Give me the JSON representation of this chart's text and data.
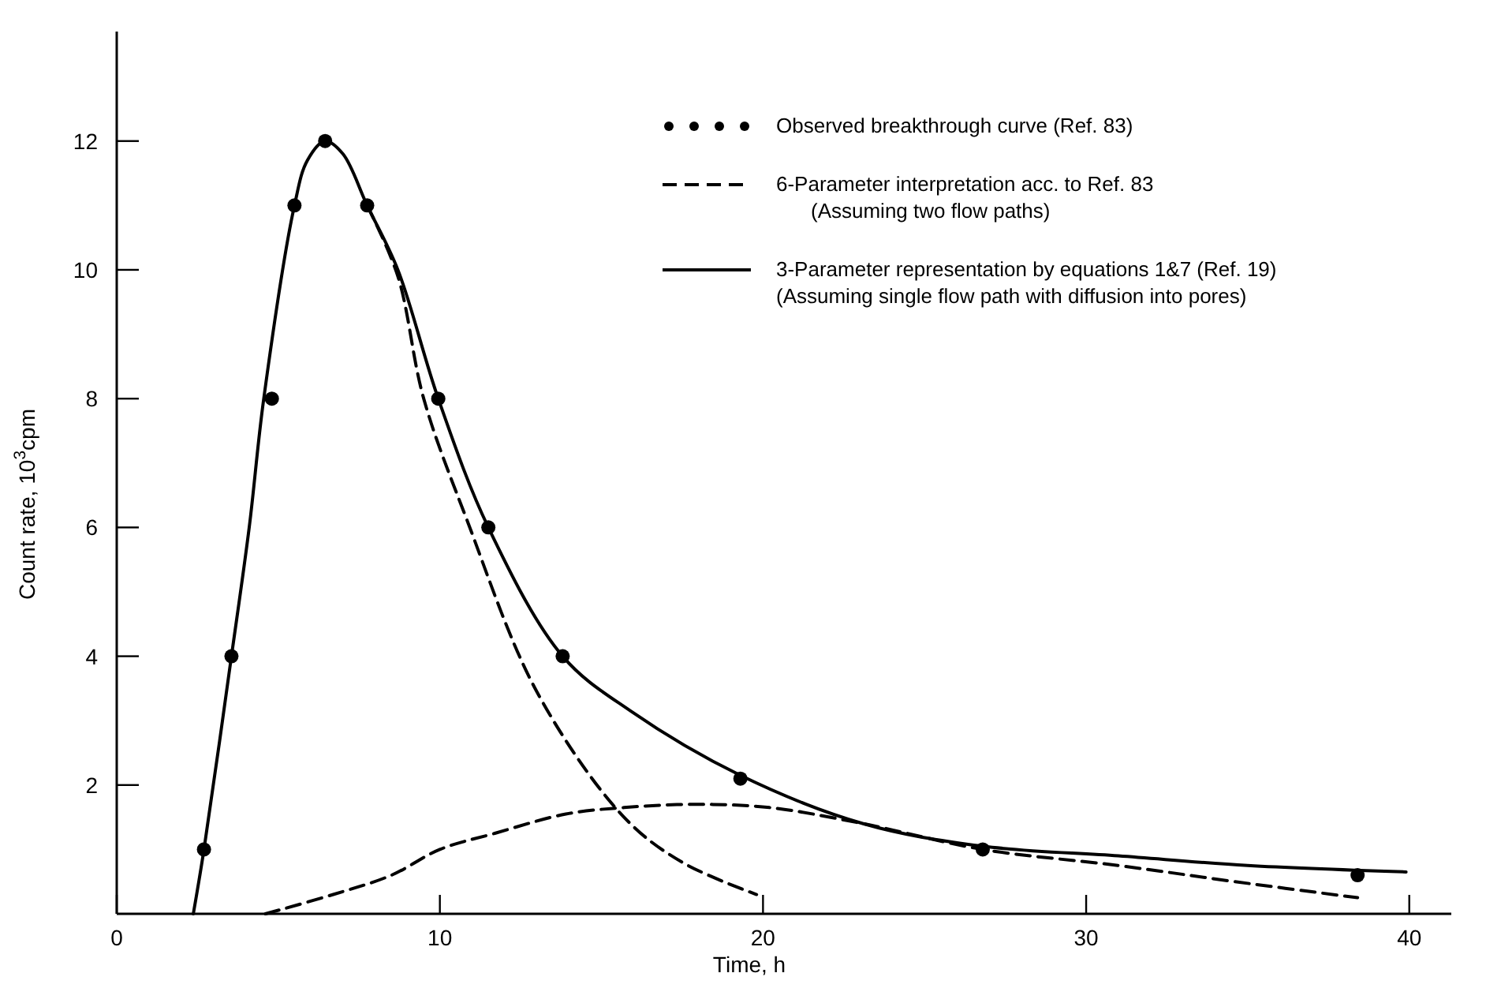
{
  "chart_data": {
    "type": "line",
    "xlabel": "Time,  h",
    "ylabel": "Count rate,  10$^{3}$cpm",
    "xlim": [
      0,
      41.3
    ],
    "ylim": [
      0,
      13.7
    ],
    "xticks": [
      0,
      10,
      20,
      30,
      40
    ],
    "yticks": [
      2,
      4,
      6,
      8,
      10,
      12
    ],
    "grid": false,
    "legend": "top right",
    "series": [
      {
        "name": "Observed breakthrough curve (Ref. 83)",
        "type": "scatter",
        "marker": "circle",
        "color": "#000000",
        "x": [
          2.7,
          3.55,
          4.8,
          5.5,
          6.45,
          7.75,
          9.95,
          11.5,
          13.8,
          19.3,
          26.8,
          38.4
        ],
        "values": [
          1,
          4,
          8,
          11,
          12,
          11,
          8,
          6,
          4,
          2.1,
          1,
          0.6
        ]
      },
      {
        "name": "6-Parameter interpretation acc. to Ref. 83\n(Assuming two flow paths)",
        "line_style": "dashed",
        "color": "#000000",
        "x": [
          7.75,
          8.7,
          9.5,
          10.85,
          13,
          15.7,
          17.5,
          19.8
        ],
        "values": [
          11,
          9.9,
          8,
          6.1,
          3.45,
          1.5,
          0.8,
          0.3
        ]
      },
      {
        "line_style": "dashed",
        "color": "#000000",
        "x": [
          4.6,
          6.7,
          8.5,
          10,
          11.7,
          13.9,
          15.7,
          17.9,
          20.2,
          23.1,
          26.8,
          31,
          34.6,
          38.4
        ],
        "values": [
          0,
          0.3,
          0.6,
          1,
          1.25,
          1.55,
          1.65,
          1.7,
          1.65,
          1.4,
          1,
          0.75,
          0.5,
          0.25
        ]
      },
      {
        "name": "3-Parameter representation by equations 1&7 (Ref. 19)\n(Assuming single flow path with diffusion into pores)",
        "line_style": "solid",
        "color": "#000000",
        "x": [
          2.37,
          2.7,
          3.55,
          4.1,
          4.55,
          5.5,
          5.9,
          6.45,
          7.0,
          7.75,
          8.7,
          9.95,
          11.5,
          13.8,
          15.9,
          19.3,
          23.1,
          26.8,
          31,
          35,
          39.9
        ],
        "values": [
          0,
          1,
          4,
          6,
          8,
          11,
          11.7,
          12,
          11.8,
          11,
          10,
          8,
          6,
          4,
          3.15,
          2.15,
          1.4,
          1.05,
          0.9,
          0.75,
          0.65
        ]
      }
    ]
  }
}
